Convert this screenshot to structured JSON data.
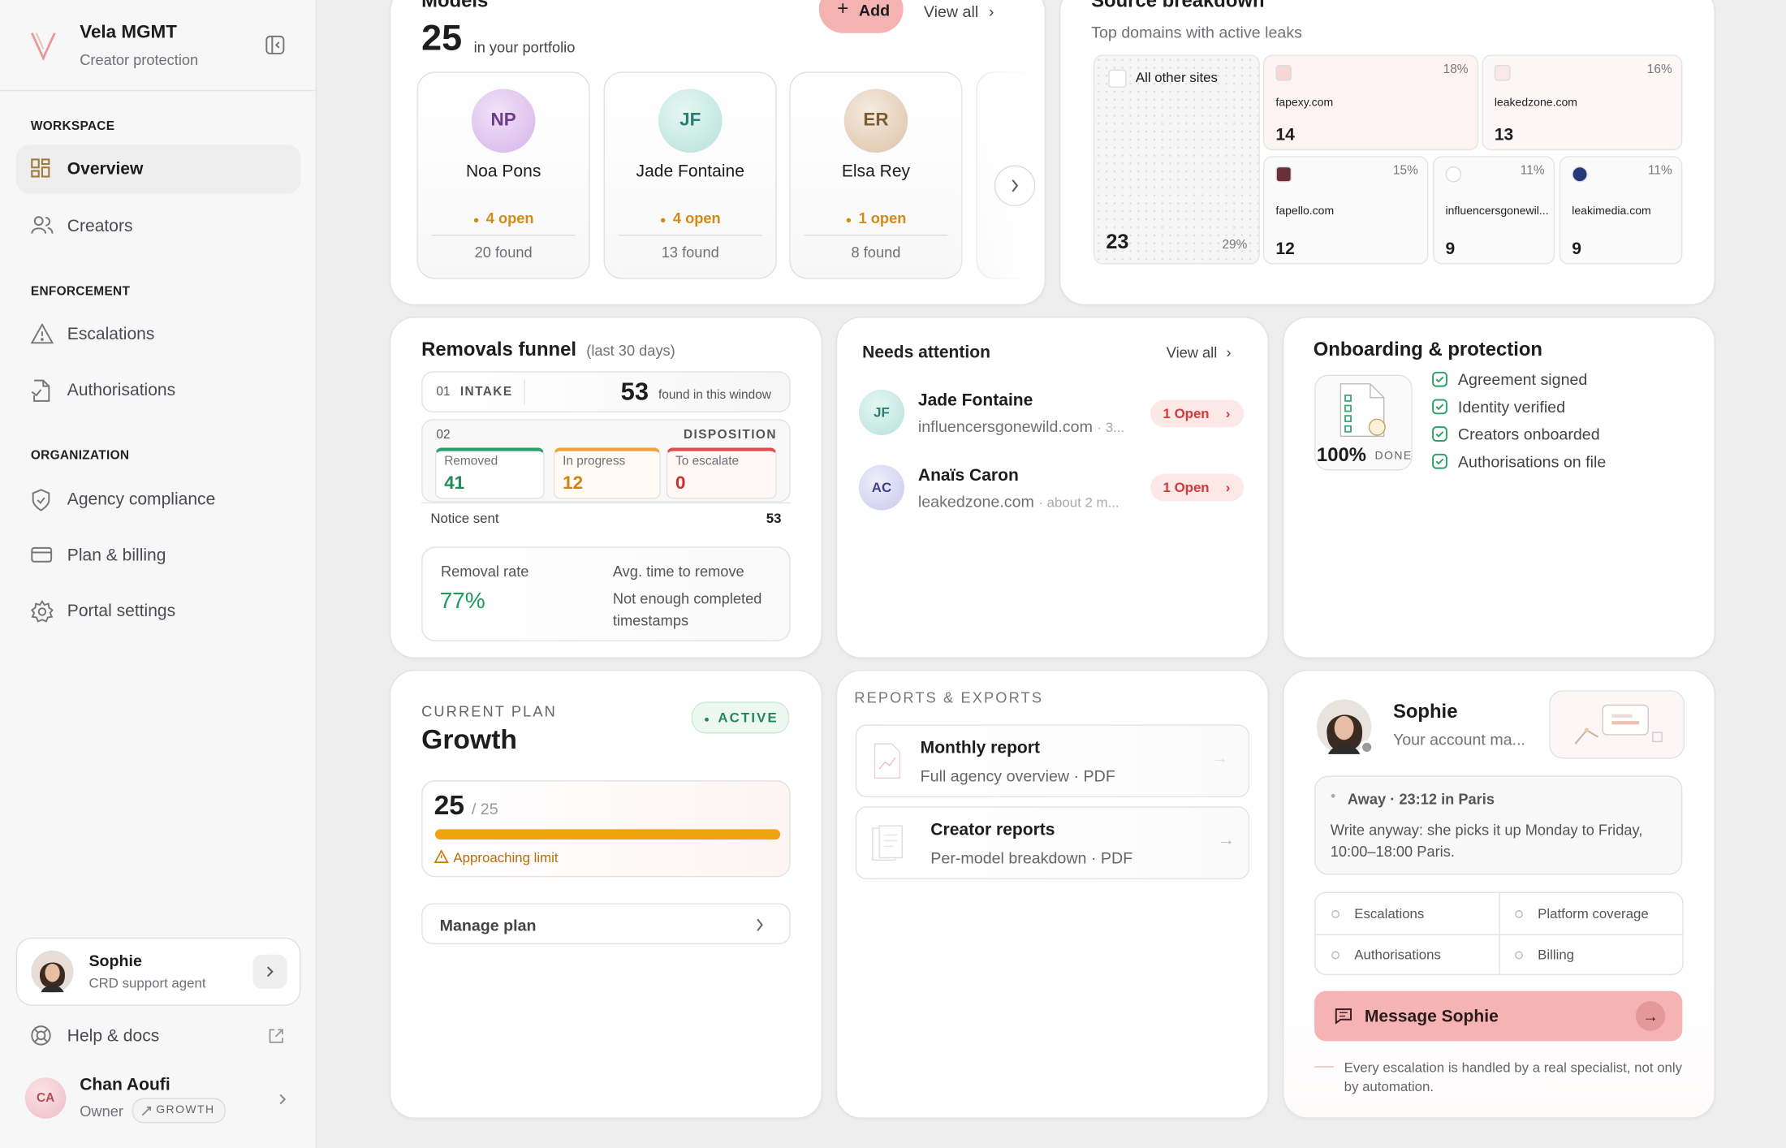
{
  "sidebar": {
    "brand": {
      "name": "Vela MGMT",
      "tagline": "Creator protection"
    },
    "sections": [
      {
        "title": "WORKSPACE",
        "items": [
          "Overview",
          "Creators"
        ]
      },
      {
        "title": "ENFORCEMENT",
        "items": [
          "Escalations",
          "Authorisations"
        ]
      },
      {
        "title": "ORGANIZATION",
        "items": [
          "Agency compliance",
          "Plan & billing",
          "Portal settings"
        ]
      }
    ],
    "support": {
      "name": "Sophie",
      "role": "CRD support agent"
    },
    "help": "Help & docs",
    "user": {
      "initials": "CA",
      "name": "Chan Aoufi",
      "role": "Owner",
      "badge": "GROWTH"
    }
  },
  "models": {
    "title": "Models",
    "count": 25,
    "count_label": "in your portfolio",
    "add": "Add",
    "view_all": "View all",
    "cards": [
      {
        "initials": "NP",
        "name": "Noa Pons",
        "open": "4 open",
        "found": "20 found"
      },
      {
        "initials": "JF",
        "name": "Jade Fontaine",
        "open": "4 open",
        "found": "13 found"
      },
      {
        "initials": "ER",
        "name": "Elsa Rey",
        "open": "1 open",
        "found": "8 found"
      }
    ]
  },
  "sources": {
    "title": "Source breakdown",
    "subtitle": "Top domains with active leaks",
    "tiles": [
      {
        "domain": "All other sites",
        "count": 23,
        "share": "29%"
      },
      {
        "domain": "fapexy.com",
        "count": 14,
        "share": "18%"
      },
      {
        "domain": "leakedzone.com",
        "count": 13,
        "share": "16%"
      },
      {
        "domain": "fapello.com",
        "count": 12,
        "share": "15%"
      },
      {
        "domain": "influencersgonewil...",
        "count": 9,
        "share": "11%"
      },
      {
        "domain": "leakimedia.com",
        "count": 9,
        "share": "11%"
      }
    ]
  },
  "funnel": {
    "title": "Removals funnel",
    "period": "(last 30 days)",
    "intake": {
      "step": "01",
      "label": "INTAKE",
      "value": 53,
      "note": "found in this window"
    },
    "disposition": {
      "step": "02",
      "label": "DISPOSITION",
      "items": [
        {
          "label": "Removed",
          "value": 41
        },
        {
          "label": "In progress",
          "value": 12
        },
        {
          "label": "To escalate",
          "value": 0
        }
      ]
    },
    "notice": {
      "label": "Notice sent",
      "value": 53
    },
    "rate": {
      "label": "Removal rate",
      "value": "77%"
    },
    "avg": {
      "label": "Avg. time to remove",
      "value": "Not enough completed timestamps"
    }
  },
  "attention": {
    "title": "Needs attention",
    "view_all": "View all",
    "items": [
      {
        "initials": "JF",
        "name": "Jade Fontaine",
        "detail": "influencersgonewild.com",
        "time": "· 3...",
        "badge": "1 Open"
      },
      {
        "initials": "AC",
        "name": "Anaïs Caron",
        "detail": "leakedzone.com",
        "time": "· about 2 m...",
        "badge": "1 Open"
      }
    ]
  },
  "onboarding": {
    "title": "Onboarding & protection",
    "progress": "100%",
    "progress_label": "DONE",
    "checks": [
      "Agreement signed",
      "Identity verified",
      "Creators onboarded",
      "Authorisations on file"
    ]
  },
  "plan": {
    "eyebrow": "CURRENT PLAN",
    "name": "Growth",
    "status": "ACTIVE",
    "used": 25,
    "limit": {
      "value": 25,
      "label": "/ 25"
    },
    "warning": "Approaching limit",
    "manage": "Manage plan"
  },
  "reports": {
    "title": "REPORTS & EXPORTS",
    "items": [
      {
        "title": "Monthly report",
        "subtitle": "Full agency overview · PDF"
      },
      {
        "title": "Creator reports",
        "subtitle": "Per-model breakdown · PDF"
      }
    ]
  },
  "manager": {
    "name": "Sophie",
    "role": "Your account ma...",
    "status": "Away · 23:12 in Paris",
    "note": "Write anyway: she picks it up Monday to Friday, 10:00–18:00 Paris.",
    "topics": [
      "Escalations",
      "Platform coverage",
      "Authorisations",
      "Billing"
    ],
    "cta": "Message Sophie",
    "footnote": "Every escalation is handled by a real specialist, not only by automation."
  }
}
